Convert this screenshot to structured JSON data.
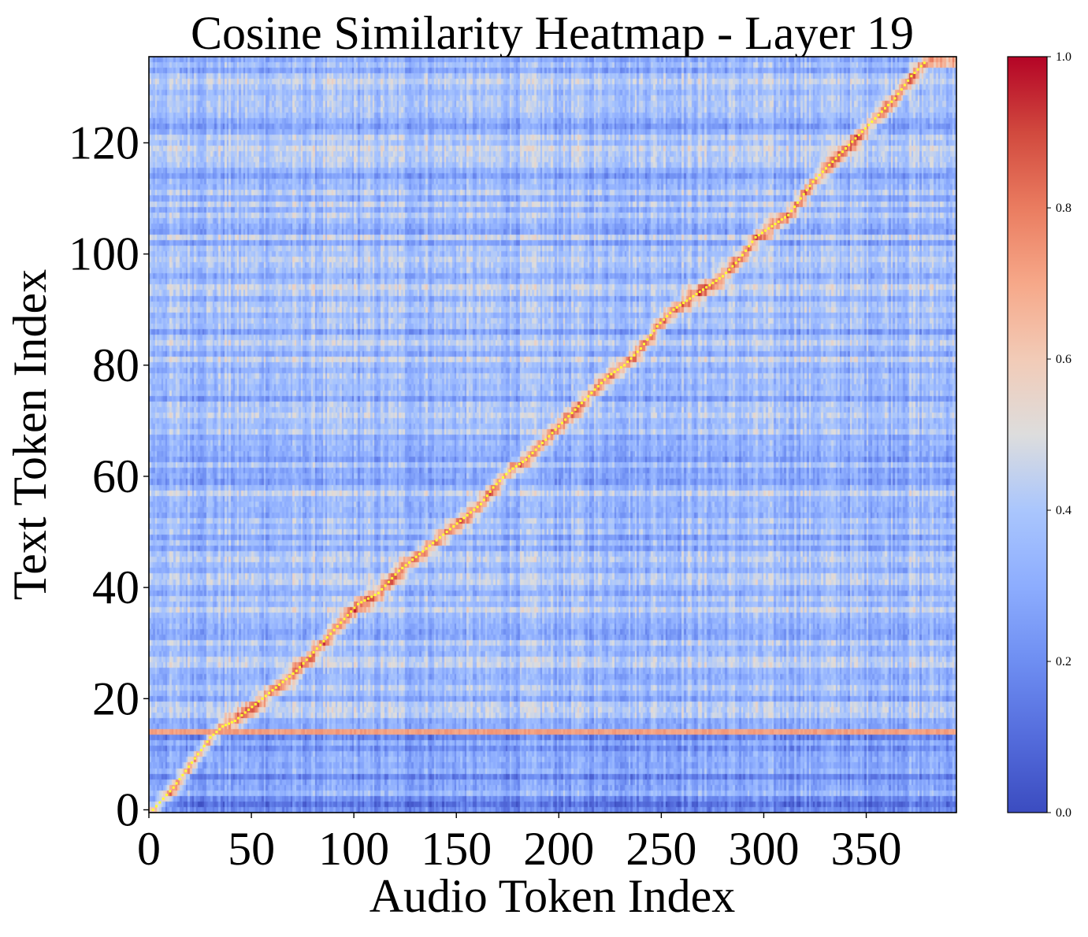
{
  "chart_data": {
    "type": "heatmap",
    "title": "Cosine Similarity Heatmap - Layer 19",
    "xlabel": "Audio Token Index",
    "ylabel": "Text Token Index",
    "x_ticks": [
      "0",
      "50",
      "100",
      "150",
      "200",
      "250",
      "300",
      "350"
    ],
    "y_ticks": [
      "0",
      "20",
      "40",
      "60",
      "80",
      "100",
      "120"
    ],
    "xlim": [
      0,
      394
    ],
    "ylim": [
      -0.5,
      135.5
    ],
    "n_audio_tokens": 394,
    "n_text_tokens": 136,
    "colorbar": {
      "colormap": "coolwarm",
      "range": [
        0.0,
        1.0
      ],
      "ticks": [
        "0.0",
        "0.2",
        "0.4",
        "0.6",
        "0.8",
        "1.0"
      ]
    },
    "overlay": {
      "description": "alignment path",
      "color": "#ffff33",
      "points": [
        [
          2,
          0
        ],
        [
          7,
          2
        ],
        [
          12,
          4
        ],
        [
          18,
          7
        ],
        [
          24,
          10
        ],
        [
          30,
          13
        ],
        [
          36,
          15
        ],
        [
          42,
          16
        ],
        [
          52,
          19
        ],
        [
          62,
          22
        ],
        [
          72,
          25
        ],
        [
          82,
          29
        ],
        [
          92,
          33
        ],
        [
          102,
          37
        ],
        [
          112,
          39
        ],
        [
          122,
          43
        ],
        [
          132,
          46
        ],
        [
          142,
          49
        ],
        [
          152,
          52
        ],
        [
          162,
          55
        ],
        [
          168,
          58
        ],
        [
          176,
          61
        ],
        [
          184,
          63
        ],
        [
          192,
          66
        ],
        [
          200,
          69
        ],
        [
          208,
          72
        ],
        [
          216,
          75
        ],
        [
          224,
          78
        ],
        [
          232,
          80
        ],
        [
          240,
          83
        ],
        [
          248,
          87
        ],
        [
          256,
          90
        ],
        [
          264,
          92
        ],
        [
          272,
          94
        ],
        [
          280,
          96
        ],
        [
          288,
          99
        ],
        [
          296,
          103
        ],
        [
          304,
          105
        ],
        [
          312,
          107
        ],
        [
          318,
          110
        ],
        [
          324,
          113
        ],
        [
          332,
          116
        ],
        [
          340,
          119
        ],
        [
          348,
          122
        ],
        [
          356,
          125
        ],
        [
          364,
          128
        ],
        [
          372,
          132
        ],
        [
          380,
          135
        ]
      ]
    },
    "highlight_rows": [
      {
        "row": 14,
        "value": 0.72
      }
    ],
    "overall_description_value_range": [
      0.05,
      0.98
    ],
    "colors": {
      "path": "#ffff33",
      "frame": "#000000"
    }
  }
}
